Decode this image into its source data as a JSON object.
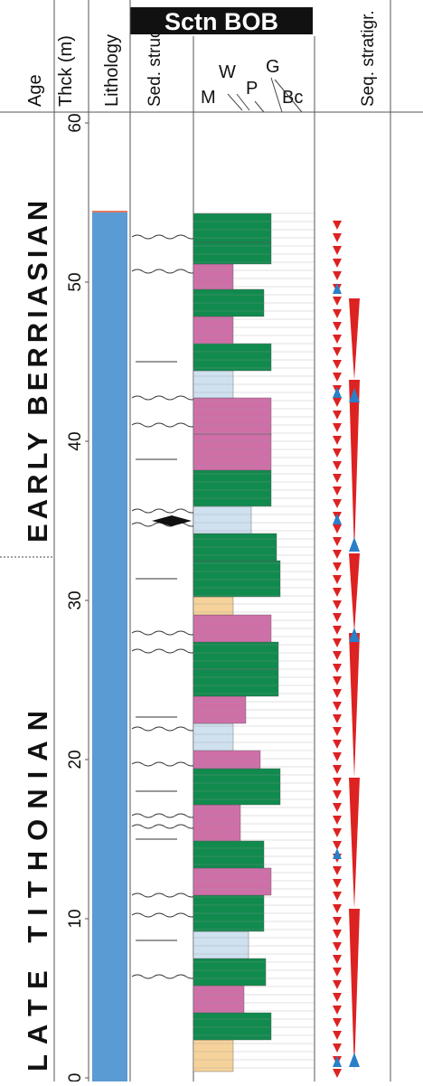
{
  "title": "Sctn BOB",
  "headers": {
    "age": "Age",
    "thickness": "Thck (m)",
    "lithology": "Lithology",
    "sed_struct": "Sed. struct.",
    "seq_stratigr": "Seq. stratigr."
  },
  "texture_scale": [
    "M",
    "W",
    "P",
    "G",
    "Bc"
  ],
  "age_labels": {
    "early_berriasian": "EARLY BERRIASIAN",
    "late_tithonian": "LATE TITHONIAN"
  },
  "depth_ticks": [
    0,
    10,
    20,
    30,
    40,
    50,
    60
  ],
  "colors": {
    "green": "#118a4e",
    "pink": "#cf6fa8",
    "lightblue": "#cfe0ef",
    "tan": "#f5d29a",
    "lithology_blue": "#5b9bd3",
    "red": "#dd2222",
    "blue": "#2a7fc9"
  }
}
